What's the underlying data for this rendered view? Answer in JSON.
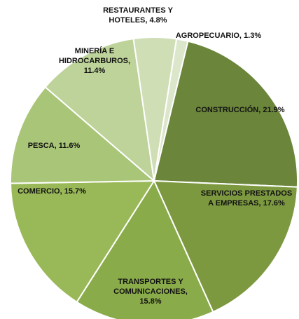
{
  "chart_data": {
    "type": "pie",
    "categories": [
      "AGROPECUARIO",
      "CONSTRUCCIÓN",
      "SERVICIOS PRESTADOS A EMPRESAS",
      "TRANSPORTES Y COMUNICACIONES",
      "COMERCIO",
      "PESCA",
      "MINERÍA E HIDROCARBUROS",
      "RESTAURANTES Y HOTELES"
    ],
    "values": [
      1.3,
      21.9,
      17.6,
      15.8,
      15.7,
      11.6,
      11.4,
      4.8
    ],
    "value_labels": [
      "1.3%",
      "21.9%",
      "17.6%",
      "15.8%",
      "15.7%",
      "11.6%",
      "11.4%",
      "4.8%"
    ],
    "colors": [
      "#dce6cb",
      "#6b853b",
      "#7d9940",
      "#8aab4a",
      "#99b958",
      "#a9c577",
      "#bdd399",
      "#d0deb6"
    ]
  }
}
